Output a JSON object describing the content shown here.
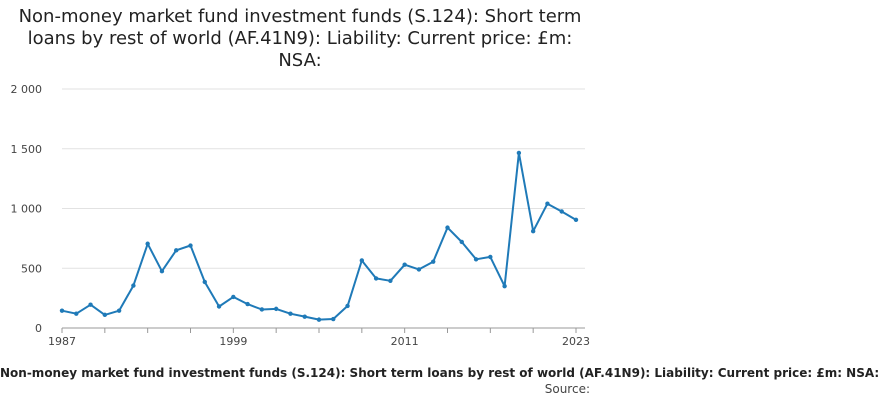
{
  "chart_data": {
    "type": "line",
    "title": "Non-money market fund investment funds (S.124): Short term loans by rest of world (AF.41N9): Liability: Current price: £m: NSA:",
    "x_tick_labels": [
      "1987",
      "1999",
      "2011",
      "2023"
    ],
    "y_tick_labels": [
      "0",
      "500",
      "1 000",
      "1 500",
      "2 000"
    ],
    "y_ticks": [
      0,
      500,
      1000,
      1500,
      2000
    ],
    "ylim": [
      0,
      2000
    ],
    "xlim": [
      1987,
      2023
    ],
    "grid": true,
    "line_color": "#1f7ab8",
    "series": [
      {
        "x": [
          1987,
          1988,
          1989,
          1990,
          1991,
          1992,
          1993,
          1994,
          1995,
          1996,
          1997,
          1998,
          1999,
          2000,
          2001,
          2002,
          2003,
          2004,
          2005,
          2006,
          2007,
          2008,
          2009,
          2010,
          2011,
          2012,
          2013,
          2014,
          2015,
          2016,
          2017,
          2018,
          2019,
          2020,
          2021,
          2022,
          2023
        ],
        "values": [
          145,
          120,
          195,
          110,
          145,
          355,
          705,
          475,
          650,
          690,
          385,
          180,
          260,
          200,
          155,
          160,
          120,
          95,
          70,
          75,
          185,
          565,
          415,
          395,
          530,
          490,
          555,
          840,
          720,
          575,
          595,
          350,
          1465,
          810,
          1040,
          975,
          905
        ]
      }
    ]
  },
  "footer": {
    "series_name": "Non-money market fund investment funds (S.124): Short term loans by rest of world (AF.41N9): Liability: Current price: £m: NSA:",
    "source": "Source:"
  }
}
